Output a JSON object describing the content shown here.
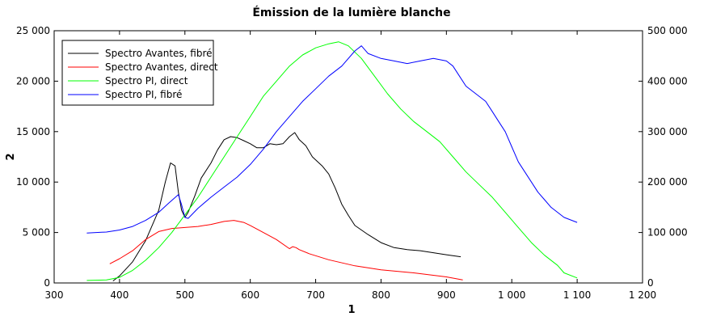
{
  "chart_data": {
    "type": "line",
    "title": "Émission de la lumière blanche",
    "xlabel": "1",
    "ylabel": "2",
    "xlim": [
      300,
      1200
    ],
    "ylim": [
      0,
      25000
    ],
    "y2lim": [
      0,
      500000
    ],
    "x_ticks": [
      300,
      400,
      500,
      600,
      700,
      800,
      900,
      1000,
      1100,
      1200
    ],
    "x_tick_labels": [
      "300",
      "400",
      "500",
      "600",
      "700",
      "800",
      "900",
      "1 000",
      "1 100",
      "1 200"
    ],
    "y_ticks": [
      0,
      5000,
      10000,
      15000,
      20000,
      25000
    ],
    "y_tick_labels": [
      "0",
      "5 000",
      "10 000",
      "15 000",
      "20 000",
      "25 000"
    ],
    "y2_ticks": [
      0,
      100000,
      200000,
      300000,
      400000,
      500000
    ],
    "y2_tick_labels": [
      "0",
      "100 000",
      "200 000",
      "300 000",
      "400 000",
      "500 000"
    ],
    "grid": false,
    "legend_position": "top-left",
    "series": [
      {
        "name": "Spectro Avantes, fibré",
        "color": "#000000",
        "axis": "left",
        "x": [
          390,
          400,
          420,
          440,
          460,
          470,
          478,
          485,
          490,
          495,
          500,
          505,
          515,
          525,
          540,
          550,
          560,
          570,
          580,
          590,
          600,
          610,
          620,
          630,
          640,
          650,
          660,
          668,
          675,
          685,
          695,
          710,
          720,
          730,
          740,
          750,
          760,
          780,
          800,
          820,
          840,
          860,
          880,
          900,
          922
        ],
        "y": [
          200,
          700,
          2100,
          4200,
          7200,
          10000,
          11900,
          11600,
          9000,
          7200,
          6500,
          7000,
          8600,
          10400,
          11900,
          13200,
          14200,
          14500,
          14400,
          14100,
          13800,
          13400,
          13400,
          13800,
          13700,
          13800,
          14500,
          14900,
          14200,
          13600,
          12500,
          11600,
          10800,
          9400,
          7800,
          6700,
          5700,
          4800,
          4000,
          3500,
          3300,
          3200,
          3000,
          2800,
          2600
        ]
      },
      {
        "name": "Spectro Avantes, direct",
        "color": "#ff0000",
        "axis": "left",
        "x": [
          385,
          400,
          420,
          440,
          460,
          480,
          500,
          520,
          540,
          560,
          575,
          590,
          600,
          620,
          640,
          660,
          665,
          670,
          675,
          690,
          720,
          760,
          800,
          850,
          900,
          925
        ],
        "y": [
          1900,
          2400,
          3200,
          4300,
          5100,
          5400,
          5500,
          5600,
          5800,
          6100,
          6200,
          6000,
          5700,
          5000,
          4300,
          3400,
          3600,
          3500,
          3300,
          2900,
          2300,
          1700,
          1300,
          1000,
          600,
          300
        ]
      },
      {
        "name": "Spectro PI, direct",
        "color": "#00ff00",
        "axis": "right",
        "x": [
          350,
          380,
          400,
          420,
          440,
          460,
          480,
          500,
          520,
          540,
          560,
          580,
          600,
          620,
          640,
          660,
          680,
          700,
          720,
          735,
          750,
          770,
          790,
          810,
          830,
          850,
          870,
          890,
          910,
          930,
          950,
          970,
          990,
          1010,
          1030,
          1050,
          1070,
          1080,
          1100
        ],
        "y": [
          5000,
          6000,
          11000,
          25000,
          45000,
          70000,
          100000,
          135000,
          170000,
          210000,
          250000,
          290000,
          330000,
          370000,
          400000,
          430000,
          452000,
          466000,
          474000,
          478000,
          470000,
          445000,
          410000,
          375000,
          345000,
          320000,
          300000,
          280000,
          250000,
          220000,
          195000,
          170000,
          140000,
          110000,
          80000,
          55000,
          35000,
          20000,
          10000
        ]
      },
      {
        "name": "Spectro PI, fibré",
        "color": "#0000ff",
        "axis": "right",
        "x": [
          350,
          380,
          400,
          420,
          440,
          460,
          475,
          490,
          495,
          500,
          505,
          520,
          540,
          560,
          580,
          600,
          620,
          640,
          660,
          680,
          700,
          720,
          740,
          760,
          770,
          780,
          800,
          820,
          840,
          860,
          880,
          900,
          910,
          920,
          930,
          940,
          950,
          960,
          970,
          980,
          990,
          1000,
          1010,
          1020,
          1030,
          1040,
          1050,
          1060,
          1080,
          1100
        ],
        "y": [
          99000,
          101000,
          105000,
          112000,
          124000,
          140000,
          158000,
          175000,
          155000,
          130000,
          128000,
          148000,
          170000,
          190000,
          210000,
          235000,
          265000,
          300000,
          330000,
          360000,
          385000,
          410000,
          430000,
          460000,
          470000,
          455000,
          445000,
          440000,
          435000,
          440000,
          445000,
          440000,
          430000,
          410000,
          390000,
          380000,
          370000,
          360000,
          340000,
          320000,
          300000,
          270000,
          240000,
          220000,
          200000,
          180000,
          165000,
          150000,
          130000,
          120000
        ]
      }
    ]
  }
}
